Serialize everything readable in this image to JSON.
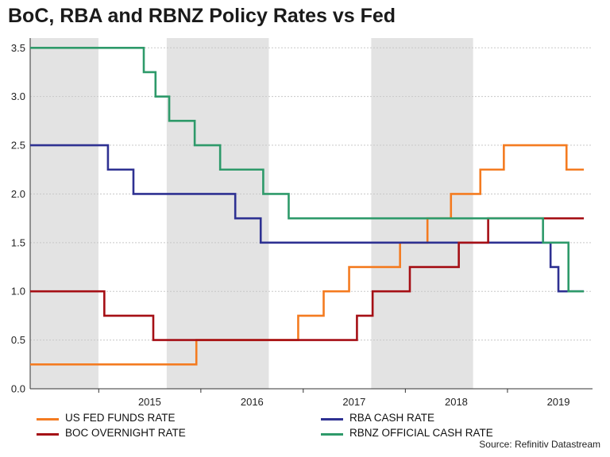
{
  "title": "BoC, RBA and RBNZ Policy Rates vs Fed",
  "source": "Source: Refinitiv Datastream",
  "colors": {
    "fed": "#f47b20",
    "rba": "#2e3192",
    "boc": "#a50f15",
    "rbnz": "#2e9a6a",
    "shade": "#e3e3e3",
    "grid": "#c8c8c8"
  },
  "chart_data": {
    "type": "line",
    "title": "BoC, RBA and RBNZ Policy Rates vs Fed",
    "xlabel": "",
    "ylabel": "",
    "xlim": [
      "2014-05-01",
      "2019-11-01"
    ],
    "ylim": [
      0,
      3.6
    ],
    "y_ticks": [
      "0.0",
      "0.5",
      "1.0",
      "1.5",
      "2.0",
      "2.5",
      "3.0",
      "3.5"
    ],
    "x_ticks": [
      "2015",
      "2016",
      "2017",
      "2018",
      "2019"
    ],
    "grid": "horizontal dashed",
    "shaded_periods": [
      [
        "2014-05-01",
        "2014-12-31"
      ],
      [
        "2015-09-01",
        "2016-08-31"
      ],
      [
        "2017-09-01",
        "2018-08-31"
      ]
    ],
    "series": [
      {
        "name": "US FED FUNDS RATE",
        "color": "#f47b20",
        "points": [
          [
            "2014-05-01",
            0.25
          ],
          [
            "2015-12-16",
            0.5
          ],
          [
            "2016-12-14",
            0.75
          ],
          [
            "2017-03-15",
            1.0
          ],
          [
            "2017-06-14",
            1.25
          ],
          [
            "2017-12-13",
            1.5
          ],
          [
            "2018-03-21",
            1.75
          ],
          [
            "2018-06-13",
            2.0
          ],
          [
            "2018-09-26",
            2.25
          ],
          [
            "2018-12-19",
            2.5
          ],
          [
            "2019-07-31",
            2.25
          ],
          [
            "2019-10-01",
            2.25
          ]
        ]
      },
      {
        "name": "RBA CASH RATE",
        "color": "#2e3192",
        "points": [
          [
            "2014-05-01",
            2.5
          ],
          [
            "2015-02-03",
            2.25
          ],
          [
            "2015-05-05",
            2.0
          ],
          [
            "2016-05-03",
            1.75
          ],
          [
            "2016-08-02",
            1.5
          ],
          [
            "2019-06-04",
            1.25
          ],
          [
            "2019-07-02",
            1.0
          ],
          [
            "2019-10-01",
            1.0
          ]
        ]
      },
      {
        "name": "BOC OVERNIGHT RATE",
        "color": "#a50f15",
        "points": [
          [
            "2014-05-01",
            1.0
          ],
          [
            "2015-01-21",
            0.75
          ],
          [
            "2015-07-15",
            0.5
          ],
          [
            "2017-07-12",
            0.75
          ],
          [
            "2017-09-06",
            1.0
          ],
          [
            "2018-01-17",
            1.25
          ],
          [
            "2018-07-11",
            1.5
          ],
          [
            "2018-10-24",
            1.75
          ],
          [
            "2019-10-01",
            1.75
          ]
        ]
      },
      {
        "name": "RBNZ OFFICIAL CASH RATE",
        "color": "#2e9a6a",
        "points": [
          [
            "2014-05-01",
            3.5
          ],
          [
            "2015-06-11",
            3.25
          ],
          [
            "2015-07-23",
            3.0
          ],
          [
            "2015-09-10",
            2.75
          ],
          [
            "2015-12-10",
            2.5
          ],
          [
            "2016-03-10",
            2.25
          ],
          [
            "2016-08-11",
            2.0
          ],
          [
            "2016-11-10",
            1.75
          ],
          [
            "2019-05-08",
            1.5
          ],
          [
            "2019-08-07",
            1.0
          ],
          [
            "2019-10-01",
            1.0
          ]
        ]
      }
    ]
  },
  "legend": [
    {
      "key": "fed",
      "label": "US FED FUNDS RATE"
    },
    {
      "key": "rba",
      "label": "RBA CASH RATE"
    },
    {
      "key": "boc",
      "label": "BOC OVERNIGHT RATE"
    },
    {
      "key": "rbnz",
      "label": "RBNZ OFFICIAL CASH RATE"
    }
  ]
}
